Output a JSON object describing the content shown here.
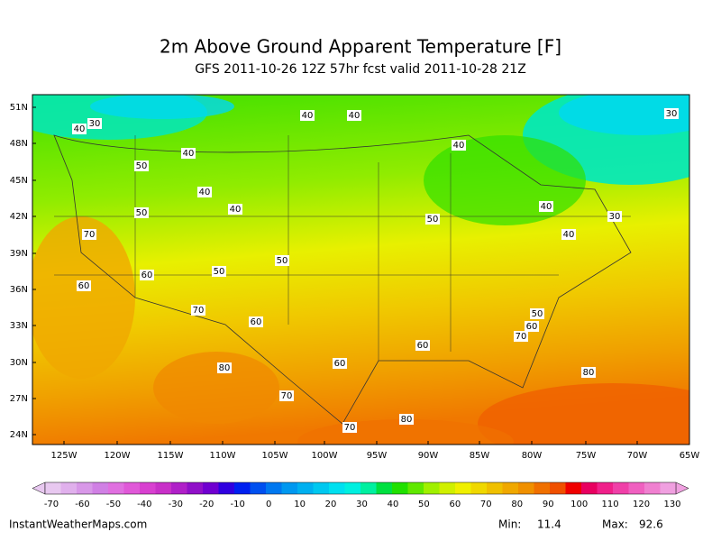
{
  "header": {
    "title": "2m Above Ground Apparent Temperature [F]",
    "subtitle": "GFS 2011-10-26 12Z 57hr fcst valid 2011-10-28 21Z"
  },
  "map": {
    "lat_labels": [
      "51N",
      "48N",
      "45N",
      "42N",
      "39N",
      "36N",
      "33N",
      "30N",
      "27N",
      "24N"
    ],
    "lon_labels": [
      "125W",
      "120W",
      "115W",
      "110W",
      "105W",
      "100W",
      "95W",
      "90W",
      "85W",
      "80W",
      "75W",
      "70W",
      "65W"
    ],
    "contour_labels": [
      "40",
      "30",
      "40",
      "40",
      "30",
      "40",
      "40",
      "50",
      "40",
      "40",
      "50",
      "50",
      "40",
      "30",
      "40",
      "70",
      "50",
      "50",
      "60",
      "60",
      "70",
      "60",
      "50",
      "60",
      "70",
      "60",
      "60",
      "80",
      "80",
      "70",
      "80",
      "70"
    ]
  },
  "colorbar": {
    "labels": [
      -70,
      -60,
      -50,
      -40,
      -30,
      -20,
      -10,
      0,
      10,
      20,
      30,
      40,
      50,
      60,
      70,
      80,
      90,
      100,
      110,
      120,
      130
    ],
    "colors": [
      "#e8c8f0",
      "#e0b0ec",
      "#d898e8",
      "#d080e4",
      "#e070e0",
      "#e058d8",
      "#d840d0",
      "#c830c8",
      "#b020c8",
      "#9010c8",
      "#7000d0",
      "#3000e0",
      "#0020f0",
      "#0050f0",
      "#0078f0",
      "#0098f0",
      "#00b0f0",
      "#00c8f0",
      "#00e0f0",
      "#00f0e0",
      "#00f0a0",
      "#00e040",
      "#20e000",
      "#60e800",
      "#a0f000",
      "#d0f000",
      "#f0f000",
      "#f0d800",
      "#f0c000",
      "#f0a800",
      "#f09000",
      "#f07000",
      "#f05000",
      "#f00000",
      "#e80060",
      "#f0208a",
      "#f040a8",
      "#f060c0",
      "#f080d0",
      "#f0a0e0"
    ]
  },
  "footer": {
    "site": "InstantWeatherMaps.com",
    "min_label": "Min:",
    "min_value": "11.4",
    "max_label": "Max:",
    "max_value": "92.6"
  }
}
